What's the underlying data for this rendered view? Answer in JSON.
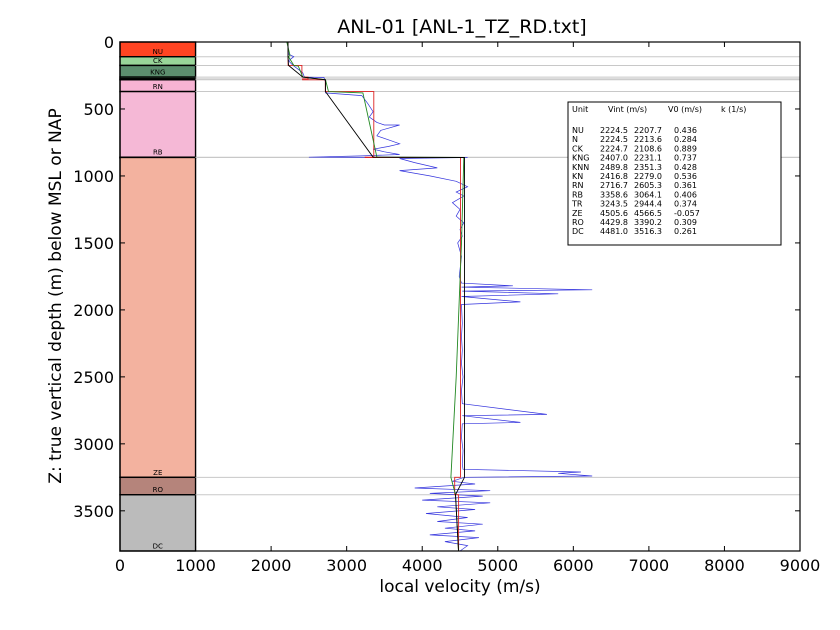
{
  "chart_data": {
    "type": "line",
    "title": "ANL-01 [ANL-1_TZ_RD.txt]",
    "xlabel": "local velocity (m/s)",
    "ylabel": "Z: true vertical depth (m) below MSL or NAP",
    "xlim": [
      0,
      9000
    ],
    "ylim": [
      3800,
      0
    ],
    "x_ticks": [
      "0",
      "1000",
      "2000",
      "3000",
      "4000",
      "5000",
      "6000",
      "7000",
      "8000",
      "9000"
    ],
    "y_ticks": [
      "0",
      "500",
      "1000",
      "1500",
      "2000",
      "2500",
      "3000",
      "3500"
    ],
    "grid": false,
    "units": [
      {
        "name": "NU",
        "top": 0,
        "base": 110,
        "color": "#ff4422"
      },
      {
        "name": "CK",
        "top": 110,
        "base": 175,
        "color": "#99d699"
      },
      {
        "name": "KNG",
        "top": 175,
        "base": 262,
        "color": "#5c8f6e"
      },
      {
        "name": "KNN",
        "top": 262,
        "base": 275,
        "color": "#4a8a5a"
      },
      {
        "name": "KN",
        "top": 275,
        "base": 282,
        "color": "#3f7f50"
      },
      {
        "name": "RN",
        "top": 282,
        "base": 370,
        "color": "#f7b3d3"
      },
      {
        "name": "RB",
        "top": 370,
        "base": 860,
        "color": "#f5b8d6"
      },
      {
        "name": "TR",
        "top": 860,
        "base": 862,
        "color": "#f3b29f"
      },
      {
        "name": "ZE",
        "top": 862,
        "base": 3250,
        "color": "#f3b29f"
      },
      {
        "name": "RO",
        "top": 3250,
        "base": 3380,
        "color": "#b5847b"
      },
      {
        "name": "DC",
        "top": 3380,
        "base": 3800,
        "color": "#bbbbbb"
      }
    ],
    "legend": {
      "placement": "top-right",
      "header": {
        "unit": "Unit",
        "vint": "Vint (m/s)",
        "v0": "V0 (m/s)",
        "k": "k (1/s)"
      },
      "rows": [
        {
          "unit": "NU",
          "vint": "2224.5",
          "v0": "2207.7",
          "k": "0.436"
        },
        {
          "unit": "N",
          "vint": "2224.5",
          "v0": "2213.6",
          "k": "0.284"
        },
        {
          "unit": "CK",
          "vint": "2224.7",
          "v0": "2108.6",
          "k": "0.889"
        },
        {
          "unit": "KNG",
          "vint": "2407.0",
          "v0": "2231.1",
          "k": "0.737"
        },
        {
          "unit": "KNN",
          "vint": "2489.8",
          "v0": "2351.3",
          "k": "0.428"
        },
        {
          "unit": "KN",
          "vint": "2416.8",
          "v0": "2279.0",
          "k": "0.536"
        },
        {
          "unit": "RN",
          "vint": "2716.7",
          "v0": "2605.3",
          "k": "0.361"
        },
        {
          "unit": "RB",
          "vint": "3358.6",
          "v0": "3064.1",
          "k": "0.406"
        },
        {
          "unit": "TR",
          "vint": "3243.5",
          "v0": "2944.4",
          "k": "0.374"
        },
        {
          "unit": "ZE",
          "vint": "4505.6",
          "v0": "4566.5",
          "k": "-0.057"
        },
        {
          "unit": "RO",
          "vint": "4429.8",
          "v0": "3390.2",
          "k": "0.309"
        },
        {
          "unit": "DC",
          "vint": "4481.0",
          "v0": "3516.3",
          "k": "0.261"
        }
      ]
    },
    "series": [
      {
        "color": "#3333dd",
        "points": [
          [
            2224,
            0
          ],
          [
            2230,
            90
          ],
          [
            2300,
            110
          ],
          [
            2230,
            140
          ],
          [
            2290,
            175
          ],
          [
            2350,
            200
          ],
          [
            2420,
            230
          ],
          [
            2440,
            262
          ],
          [
            2700,
            265
          ],
          [
            2720,
            300
          ],
          [
            2720,
            360
          ],
          [
            2720,
            380
          ],
          [
            3200,
            400
          ],
          [
            3280,
            460
          ],
          [
            3350,
            520
          ],
          [
            3300,
            560
          ],
          [
            3400,
            600
          ],
          [
            3500,
            620
          ],
          [
            3700,
            620
          ],
          [
            3450,
            660
          ],
          [
            3400,
            700
          ],
          [
            3600,
            740
          ],
          [
            3700,
            760
          ],
          [
            3550,
            780
          ],
          [
            3350,
            800
          ],
          [
            3500,
            820
          ],
          [
            3700,
            840
          ],
          [
            3200,
            850
          ],
          [
            2500,
            860
          ],
          [
            4600,
            862
          ],
          [
            3700,
            870
          ],
          [
            3900,
            900
          ],
          [
            4200,
            940
          ],
          [
            3700,
            960
          ],
          [
            4100,
            1000
          ],
          [
            4450,
            1040
          ],
          [
            4600,
            1080
          ],
          [
            4450,
            1120
          ],
          [
            4550,
            1150
          ],
          [
            4400,
            1200
          ],
          [
            4500,
            1250
          ],
          [
            4450,
            1300
          ],
          [
            4550,
            1350
          ],
          [
            4500,
            1400
          ],
          [
            4530,
            1450
          ],
          [
            4470,
            1500
          ],
          [
            4520,
            1600
          ],
          [
            4500,
            1700
          ],
          [
            4490,
            1750
          ],
          [
            4520,
            1800
          ],
          [
            5200,
            1820
          ],
          [
            4520,
            1830
          ],
          [
            6250,
            1850
          ],
          [
            4530,
            1860
          ],
          [
            5800,
            1880
          ],
          [
            4520,
            1900
          ],
          [
            5300,
            1940
          ],
          [
            4520,
            1960
          ],
          [
            4530,
            2100
          ],
          [
            4520,
            2200
          ],
          [
            4530,
            2300
          ],
          [
            4520,
            2400
          ],
          [
            4540,
            2500
          ],
          [
            4520,
            2600
          ],
          [
            4530,
            2700
          ],
          [
            5650,
            2780
          ],
          [
            4530,
            2790
          ],
          [
            5300,
            2840
          ],
          [
            4530,
            2850
          ],
          [
            4520,
            2950
          ],
          [
            4540,
            3050
          ],
          [
            4530,
            3150
          ],
          [
            4540,
            3190
          ],
          [
            6100,
            3210
          ],
          [
            5800,
            3220
          ],
          [
            6250,
            3240
          ],
          [
            4560,
            3250
          ],
          [
            4500,
            3260
          ],
          [
            4400,
            3280
          ],
          [
            4700,
            3300
          ],
          [
            3900,
            3330
          ],
          [
            4900,
            3350
          ],
          [
            4100,
            3370
          ],
          [
            4800,
            3390
          ],
          [
            4000,
            3420
          ],
          [
            4900,
            3440
          ],
          [
            4200,
            3470
          ],
          [
            4700,
            3490
          ],
          [
            4050,
            3520
          ],
          [
            4600,
            3550
          ],
          [
            4200,
            3580
          ],
          [
            4800,
            3600
          ],
          [
            4300,
            3630
          ],
          [
            4700,
            3650
          ],
          [
            4100,
            3680
          ],
          [
            4750,
            3700
          ],
          [
            4300,
            3730
          ],
          [
            4600,
            3760
          ],
          [
            4500,
            3800
          ]
        ]
      },
      {
        "color": "#dd2222",
        "points": [
          [
            2224,
            0
          ],
          [
            2224,
            110
          ],
          [
            2225,
            110
          ],
          [
            2225,
            175
          ],
          [
            2407,
            175
          ],
          [
            2407,
            262
          ],
          [
            2490,
            262
          ],
          [
            2490,
            275
          ],
          [
            2417,
            275
          ],
          [
            2417,
            282
          ],
          [
            2717,
            282
          ],
          [
            2717,
            370
          ],
          [
            3359,
            370
          ],
          [
            3359,
            860
          ],
          [
            3244,
            860
          ],
          [
            3244,
            862
          ],
          [
            4506,
            862
          ],
          [
            4506,
            3250
          ],
          [
            4430,
            3250
          ],
          [
            4430,
            3380
          ],
          [
            4481,
            3380
          ],
          [
            4481,
            3800
          ]
        ]
      },
      {
        "color": "#228822",
        "points": [
          [
            2208,
            0
          ],
          [
            2250,
            100
          ],
          [
            2230,
            110
          ],
          [
            2300,
            175
          ],
          [
            2360,
            180
          ],
          [
            2420,
            262
          ],
          [
            2720,
            282
          ],
          [
            2760,
            370
          ],
          [
            3215,
            380
          ],
          [
            3400,
            860
          ],
          [
            4550,
            862
          ],
          [
            4520,
            1500
          ],
          [
            4450,
            2500
          ],
          [
            4380,
            3250
          ],
          [
            4440,
            3380
          ],
          [
            4480,
            3800
          ]
        ]
      },
      {
        "color": "#000000",
        "points": [
          [
            2224,
            0
          ],
          [
            2224,
            110
          ],
          [
            2230,
            175
          ],
          [
            2420,
            262
          ],
          [
            2720,
            282
          ],
          [
            2720,
            370
          ],
          [
            3350,
            860
          ],
          [
            4560,
            862
          ],
          [
            4560,
            3250
          ],
          [
            4440,
            3380
          ],
          [
            4480,
            3800
          ]
        ]
      }
    ]
  }
}
